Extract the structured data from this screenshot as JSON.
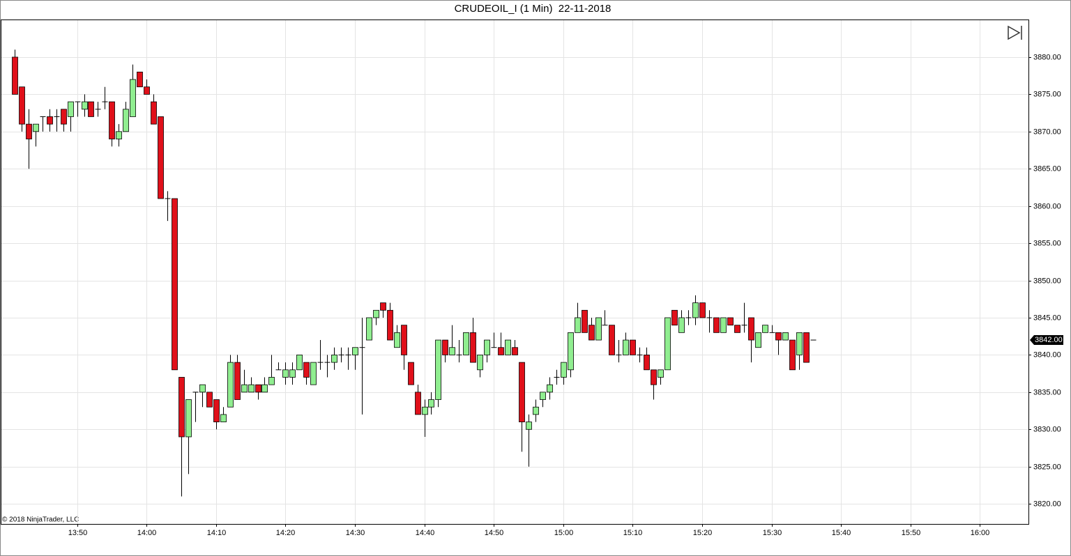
{
  "chart_data": {
    "type": "candlestick",
    "title": "CRUDEOIL_I (1 Min)  22-11-2018",
    "annotation": "© 2018 NinjaTrader, LLC",
    "x": [
      "13:41",
      "13:42",
      "13:43",
      "13:44",
      "13:45",
      "13:46",
      "13:47",
      "13:48",
      "13:49",
      "13:50",
      "13:51",
      "13:52",
      "13:53",
      "13:54",
      "13:55",
      "13:56",
      "13:57",
      "13:58",
      "13:59",
      "14:00",
      "14:01",
      "14:02",
      "14:03",
      "14:04",
      "14:05",
      "14:06",
      "14:07",
      "14:08",
      "14:09",
      "14:10",
      "14:11",
      "14:12",
      "14:13",
      "14:14",
      "14:15",
      "14:16",
      "14:17",
      "14:18",
      "14:19",
      "14:20",
      "14:21",
      "14:22",
      "14:23",
      "14:24",
      "14:25",
      "14:26",
      "14:27",
      "14:28",
      "14:29",
      "14:30",
      "14:31",
      "14:32",
      "14:33",
      "14:34",
      "14:35",
      "14:36",
      "14:37",
      "14:38",
      "14:39",
      "14:40",
      "14:41",
      "14:42",
      "14:43",
      "14:44",
      "14:45",
      "14:46",
      "14:47",
      "14:48",
      "14:49",
      "14:50",
      "14:51",
      "14:52",
      "14:53",
      "14:54",
      "14:55",
      "14:56",
      "14:57",
      "14:58",
      "14:59",
      "15:00",
      "15:01",
      "15:02",
      "15:03",
      "15:04",
      "15:05",
      "15:06",
      "15:07",
      "15:08",
      "15:09",
      "15:10",
      "15:11",
      "15:12",
      "15:13",
      "15:14",
      "15:15",
      "15:16",
      "15:17",
      "15:18",
      "15:19",
      "15:20",
      "15:21",
      "15:22",
      "15:23",
      "15:24",
      "15:25",
      "15:26",
      "15:27",
      "15:28",
      "15:29",
      "15:30",
      "15:31",
      "15:32",
      "15:33",
      "15:34",
      "15:35",
      "15:36"
    ],
    "open": [
      3880,
      3876,
      3871,
      3870,
      3872,
      3872,
      3872,
      3873,
      3872,
      3874,
      3873,
      3874,
      3873,
      3874,
      3874,
      3869,
      3870,
      3872,
      3878,
      3876,
      3874,
      3872,
      3861,
      3861,
      3837,
      3829,
      3835,
      3835,
      3835,
      3834,
      3831,
      3833,
      3839,
      3835,
      3835,
      3836,
      3835,
      3836,
      3838,
      3837,
      3837,
      3838,
      3839,
      3836,
      3839,
      3839,
      3839,
      3840,
      3840,
      3840,
      3841,
      3842,
      3845,
      3847,
      3846,
      3841,
      3844,
      3839,
      3835,
      3832,
      3833,
      3834,
      3842,
      3840,
      3840,
      3840,
      3843,
      3838,
      3840,
      3841,
      3841,
      3840,
      3841,
      3839,
      3830,
      3832,
      3834,
      3835,
      3837,
      3837,
      3838,
      3843,
      3846,
      3844,
      3842,
      3844,
      3844,
      3840,
      3840,
      3842,
      3840,
      3840,
      3838,
      3837,
      3838,
      3846,
      3843,
      3845,
      3845,
      3847,
      3845,
      3845,
      3843,
      3845,
      3844,
      3844,
      3845,
      3841,
      3843,
      3843,
      3843,
      3842,
      3842,
      3840,
      3843,
      3842
    ],
    "high": [
      3881,
      3876,
      3873,
      3871,
      3872,
      3873,
      3873,
      3873,
      3874,
      3874,
      3875,
      3874,
      3874,
      3876,
      3874,
      3871,
      3874,
      3879,
      3878,
      3877,
      3875,
      3872,
      3862,
      3861,
      3837,
      3834,
      3835,
      3836,
      3835,
      3834,
      3833,
      3840,
      3840,
      3838,
      3837,
      3836,
      3837,
      3840,
      3839,
      3839,
      3839,
      3840,
      3839,
      3839,
      3842,
      3840,
      3841,
      3841,
      3841,
      3841,
      3845,
      3845,
      3846,
      3847,
      3847,
      3844,
      3844,
      3839,
      3836,
      3834,
      3835,
      3842,
      3842,
      3844,
      3842,
      3843,
      3845,
      3840,
      3842,
      3843,
      3843,
      3842,
      3842,
      3839,
      3832,
      3834,
      3835,
      3837,
      3838,
      3839,
      3843,
      3847,
      3846,
      3845,
      3845,
      3846,
      3844,
      3842,
      3843,
      3842,
      3841,
      3841,
      3838,
      3838,
      3845,
      3846,
      3846,
      3846,
      3848,
      3847,
      3846,
      3845,
      3845,
      3845,
      3844,
      3847,
      3845,
      3843,
      3844,
      3844,
      3843,
      3843,
      3842,
      3843,
      3843,
      3842
    ],
    "low": [
      3875,
      3870,
      3865,
      3868,
      3870,
      3870,
      3870,
      3870,
      3870,
      3872,
      3872,
      3872,
      3872,
      3873,
      3868,
      3868,
      3870,
      3872,
      3876,
      3875,
      3871,
      3861,
      3858,
      3838,
      3821,
      3824,
      3831,
      3833,
      3833,
      3830,
      3831,
      3833,
      3834,
      3835,
      3835,
      3834,
      3835,
      3836,
      3838,
      3836,
      3836,
      3838,
      3836,
      3836,
      3838,
      3837,
      3838,
      3839,
      3838,
      3838,
      3832,
      3842,
      3844,
      3845,
      3842,
      3841,
      3838,
      3836,
      3832,
      3829,
      3832,
      3833,
      3839,
      3840,
      3839,
      3840,
      3839,
      3837,
      3839,
      3841,
      3840,
      3840,
      3840,
      3827,
      3825,
      3831,
      3833,
      3834,
      3836,
      3836,
      3837,
      3843,
      3843,
      3842,
      3842,
      3844,
      3840,
      3839,
      3840,
      3840,
      3839,
      3838,
      3834,
      3836,
      3838,
      3844,
      3843,
      3844,
      3844,
      3845,
      3843,
      3843,
      3843,
      3844,
      3843,
      3843,
      3839,
      3841,
      3843,
      3843,
      3840,
      3842,
      3838,
      3838,
      3839,
      3842
    ],
    "close": [
      3875,
      3871,
      3869,
      3871,
      3872,
      3871,
      3872,
      3871,
      3874,
      3874,
      3874,
      3872,
      3873,
      3874,
      3869,
      3870,
      3873,
      3877,
      3876,
      3875,
      3871,
      3861,
      3861,
      3838,
      3829,
      3834,
      3835,
      3836,
      3833,
      3831,
      3832,
      3839,
      3834,
      3836,
      3836,
      3835,
      3836,
      3837,
      3838,
      3838,
      3838,
      3840,
      3837,
      3839,
      3839,
      3839,
      3840,
      3840,
      3840,
      3841,
      3841,
      3845,
      3846,
      3846,
      3842,
      3843,
      3840,
      3836,
      3832,
      3833,
      3834,
      3842,
      3840,
      3841,
      3840,
      3843,
      3839,
      3840,
      3842,
      3841,
      3840,
      3842,
      3840,
      3831,
      3831,
      3833,
      3835,
      3836,
      3837,
      3839,
      3843,
      3845,
      3843,
      3842,
      3845,
      3844,
      3840,
      3840,
      3842,
      3840,
      3840,
      3838,
      3836,
      3838,
      3845,
      3844,
      3845,
      3845,
      3847,
      3845,
      3845,
      3843,
      3845,
      3844,
      3843,
      3844,
      3842,
      3843,
      3844,
      3843,
      3842,
      3843,
      3838,
      3843,
      3839,
      3842
    ],
    "up_color": "#90ee90",
    "down_color": "#e0101a",
    "last_price": {
      "value": 3842,
      "label": "3842.00"
    },
    "xlim": [
      "13:39",
      "16:07"
    ],
    "xticks": [
      "13:50",
      "14:00",
      "14:10",
      "14:20",
      "14:30",
      "14:40",
      "14:50",
      "15:00",
      "15:10",
      "15:20",
      "15:30",
      "15:40",
      "15:50",
      "16:00"
    ],
    "ylim": [
      3817.3,
      3885.05
    ],
    "yticks": [
      {
        "value": 3820,
        "label": "3820.00"
      },
      {
        "value": 3825,
        "label": "3825.00"
      },
      {
        "value": 3830,
        "label": "3830.00"
      },
      {
        "value": 3835,
        "label": "3835.00"
      },
      {
        "value": 3840,
        "label": "3840.00"
      },
      {
        "value": 3845,
        "label": "3845.00"
      },
      {
        "value": 3850,
        "label": "3850.00"
      },
      {
        "value": 3855,
        "label": "3855.00"
      },
      {
        "value": 3860,
        "label": "3860.00"
      },
      {
        "value": 3865,
        "label": "3865.00"
      },
      {
        "value": 3870,
        "label": "3870.00"
      },
      {
        "value": 3875,
        "label": "3875.00"
      },
      {
        "value": 3880,
        "label": "3880.00"
      }
    ],
    "grid": true
  }
}
